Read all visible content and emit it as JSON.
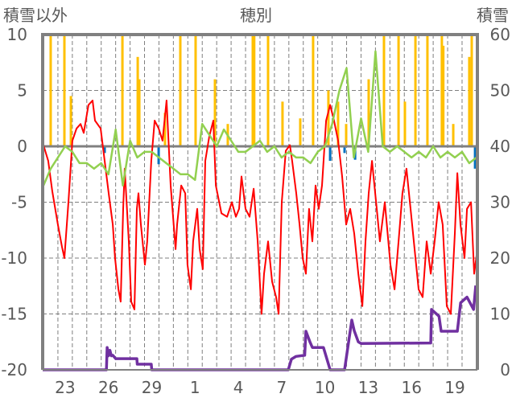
{
  "chart_data": {
    "type": "line",
    "title": "穂別",
    "ylabel_left": "積雪以外",
    "ylabel_right": "積雪",
    "ylim_left": [
      -20,
      10
    ],
    "ylim_right": [
      0,
      60
    ],
    "yticks_left": [
      "10",
      "5",
      "0",
      "-5",
      "-10",
      "-15",
      "-20"
    ],
    "yticks_right": [
      "60",
      "50",
      "40",
      "30",
      "20",
      "10",
      "0"
    ],
    "x_days": [
      "22",
      "23",
      "24",
      "25",
      "26",
      "27",
      "28",
      "29",
      "30",
      "31",
      "1",
      "2",
      "3",
      "4",
      "5",
      "6",
      "7",
      "8",
      "9",
      "10",
      "11",
      "12",
      "13",
      "14",
      "15",
      "16",
      "17",
      "18",
      "19",
      "20"
    ],
    "x_tick_labels": [
      "23",
      "26",
      "29",
      "1",
      "4",
      "7",
      "10",
      "13",
      "16",
      "19"
    ],
    "grid": true,
    "colors": {
      "red": "#FF0000",
      "green": "#92D050",
      "yellow": "#FFC000",
      "blue": "#0070C0",
      "purple": "#7030A0",
      "axis": "#808080"
    },
    "series": [
      {
        "name": "red",
        "axis": "left",
        "kind": "line",
        "points": [
          [
            0,
            0.1
          ],
          [
            0.33,
            -1.3
          ],
          [
            0.61,
            -4
          ],
          [
            1.0,
            -7
          ],
          [
            1.28,
            -9
          ],
          [
            1.45,
            -10
          ],
          [
            1.73,
            -5
          ],
          [
            2.0,
            0.5
          ],
          [
            2.29,
            1.6
          ],
          [
            2.57,
            2
          ],
          [
            2.79,
            1.2
          ],
          [
            3.12,
            3.7
          ],
          [
            3.4,
            4.1
          ],
          [
            3.57,
            2.3
          ],
          [
            3.96,
            1.6
          ],
          [
            4.24,
            -1.3
          ],
          [
            4.52,
            -4.2
          ],
          [
            4.8,
            -7
          ],
          [
            4.96,
            -10
          ],
          [
            5.19,
            -12.8
          ],
          [
            5.35,
            -13.9
          ],
          [
            5.52,
            -5.6
          ],
          [
            5.63,
            -2
          ],
          [
            5.91,
            -8.5
          ],
          [
            6.08,
            -13.9
          ],
          [
            6.3,
            -14.6
          ],
          [
            6.47,
            -5.6
          ],
          [
            6.58,
            -4.2
          ],
          [
            6.75,
            -7
          ],
          [
            7.03,
            -10.6
          ],
          [
            7.19,
            -8.5
          ],
          [
            7.47,
            -1.3
          ],
          [
            7.7,
            2.3
          ],
          [
            7.98,
            1.6
          ],
          [
            8.25,
            0.5
          ],
          [
            8.53,
            4.1
          ],
          [
            8.81,
            -3.5
          ],
          [
            9.15,
            -9.2
          ],
          [
            9.26,
            -7
          ],
          [
            9.54,
            -3.5
          ],
          [
            9.82,
            -4.2
          ],
          [
            9.98,
            -10.6
          ],
          [
            10.21,
            -12.8
          ],
          [
            10.37,
            -8.5
          ],
          [
            10.65,
            -5.6
          ],
          [
            10.82,
            -9.2
          ],
          [
            11.04,
            -11
          ],
          [
            11.21,
            -1.3
          ],
          [
            11.49,
            0.9
          ],
          [
            11.77,
            2.3
          ],
          [
            11.94,
            -3.5
          ],
          [
            12.33,
            -6
          ],
          [
            12.72,
            -6.3
          ],
          [
            13.05,
            -5
          ],
          [
            13.33,
            -6.3
          ],
          [
            13.55,
            -5.6
          ],
          [
            13.72,
            -2.7
          ],
          [
            14.0,
            -5.6
          ],
          [
            14.28,
            -6.3
          ],
          [
            14.56,
            -3.8
          ],
          [
            14.84,
            -8.5
          ],
          [
            15.11,
            -15
          ],
          [
            15.28,
            -11.4
          ],
          [
            15.56,
            -8.5
          ],
          [
            15.84,
            -12.1
          ],
          [
            16.12,
            -13.5
          ],
          [
            16.29,
            -15
          ],
          [
            16.51,
            -5
          ],
          [
            16.79,
            -0.4
          ],
          [
            17.07,
            0.1
          ],
          [
            17.23,
            -1.3
          ],
          [
            17.51,
            -4.2
          ],
          [
            17.74,
            -7
          ],
          [
            17.96,
            -10
          ],
          [
            18.18,
            -11.4
          ],
          [
            18.4,
            -5.6
          ],
          [
            18.63,
            -8.5
          ],
          [
            18.85,
            -3.5
          ],
          [
            19.07,
            -5.6
          ],
          [
            19.3,
            -3.5
          ],
          [
            19.58,
            2.3
          ],
          [
            19.86,
            3.7
          ],
          [
            20.13,
            2.3
          ],
          [
            20.41,
            0.5
          ],
          [
            20.69,
            -2.7
          ],
          [
            20.97,
            -7
          ],
          [
            21.25,
            -5.6
          ],
          [
            21.53,
            -7.8
          ],
          [
            21.81,
            -11.4
          ],
          [
            22.09,
            -14.3
          ],
          [
            22.31,
            -8.5
          ],
          [
            22.53,
            -4.2
          ],
          [
            22.76,
            -1.3
          ],
          [
            23.09,
            -5.6
          ],
          [
            23.31,
            -8.5
          ],
          [
            23.65,
            -5
          ],
          [
            24.04,
            -10.6
          ],
          [
            24.32,
            -12.8
          ],
          [
            24.6,
            -8.5
          ],
          [
            24.87,
            -4.2
          ],
          [
            25.15,
            -2
          ],
          [
            25.43,
            -5.6
          ],
          [
            25.71,
            -9.2
          ],
          [
            25.99,
            -12.8
          ],
          [
            26.27,
            -13.5
          ],
          [
            26.55,
            -8.5
          ],
          [
            26.83,
            -11.4
          ],
          [
            27.1,
            -8.5
          ],
          [
            27.38,
            -5
          ],
          [
            27.66,
            -7
          ],
          [
            27.94,
            -14.3
          ],
          [
            28.22,
            -15
          ],
          [
            28.5,
            -7.8
          ],
          [
            28.67,
            -2.4
          ],
          [
            28.89,
            -7
          ],
          [
            29.17,
            -10
          ],
          [
            29.34,
            -5.6
          ],
          [
            29.62,
            -5
          ],
          [
            29.84,
            -11.4
          ],
          [
            30.06,
            -9.2
          ]
        ]
      },
      {
        "name": "green",
        "axis": "left",
        "kind": "line",
        "start": 0,
        "step": 0.5,
        "values": [
          -3.5,
          -2,
          -1,
          0,
          -0.5,
          -1.5,
          -1.5,
          -2,
          -1.5,
          -2.5,
          1.5,
          -3.5,
          0.5,
          -1,
          -0.5,
          -0.5,
          -1,
          -1.5,
          -2,
          -2.5,
          -2.5,
          -3,
          2,
          1,
          0,
          1.5,
          0.5,
          -0.5,
          -0.5,
          0,
          0.5,
          -0.5,
          0,
          -1,
          -0.5,
          -1,
          -1,
          -1.5,
          -0.5,
          0,
          2,
          5,
          7,
          -1,
          2.5,
          -0.5,
          8.5,
          0,
          -0.5,
          0,
          -0.5,
          -1,
          -0.5,
          -1,
          0,
          -1,
          -0.5,
          -1,
          -0.5,
          -1.5,
          -1
        ]
      },
      {
        "name": "yellow",
        "axis": "left",
        "kind": "bar",
        "points": [
          [
            0.5,
            10
          ],
          [
            1.45,
            10
          ],
          [
            1.9,
            4.5
          ],
          [
            5.47,
            10
          ],
          [
            6.53,
            8
          ],
          [
            6.64,
            6
          ],
          [
            8.42,
            3
          ],
          [
            9.48,
            10
          ],
          [
            10.54,
            10
          ],
          [
            11.88,
            6
          ],
          [
            12.77,
            2
          ],
          [
            14.5,
            10
          ],
          [
            14.6,
            10
          ],
          [
            15.56,
            10
          ],
          [
            16.56,
            4
          ],
          [
            17.79,
            2.5
          ],
          [
            18.68,
            10
          ],
          [
            19.74,
            5
          ],
          [
            20.41,
            4
          ],
          [
            20.97,
            2
          ],
          [
            22.53,
            6
          ],
          [
            23.59,
            10
          ],
          [
            24.6,
            10
          ],
          [
            25.04,
            4
          ],
          [
            25.77,
            10
          ],
          [
            26.6,
            10
          ],
          [
            27.6,
            10
          ],
          [
            27.7,
            9
          ],
          [
            28.39,
            2
          ],
          [
            29.5,
            8
          ],
          [
            29.67,
            10
          ]
        ]
      },
      {
        "name": "blue",
        "axis": "left",
        "kind": "bar",
        "points": [
          [
            4.24,
            -0.6
          ],
          [
            7.98,
            -1.6
          ],
          [
            19.86,
            -1.3
          ],
          [
            20.86,
            -0.6
          ],
          [
            21.59,
            -1.2
          ],
          [
            29.9,
            -2.0
          ]
        ]
      },
      {
        "name": "purple",
        "axis": "right",
        "kind": "line",
        "points": [
          [
            -0.1,
            0
          ],
          [
            4.36,
            0
          ],
          [
            4.41,
            4
          ],
          [
            4.5,
            2.5
          ],
          [
            4.6,
            3.5
          ],
          [
            4.7,
            2.5
          ],
          [
            4.8,
            2.6
          ],
          [
            5.0,
            2
          ],
          [
            6.47,
            2
          ],
          [
            6.5,
            1
          ],
          [
            7.47,
            1
          ],
          [
            7.5,
            0
          ],
          [
            16.96,
            0
          ],
          [
            17.18,
            1.9
          ],
          [
            17.5,
            2.4
          ],
          [
            18.1,
            2.6
          ],
          [
            18.18,
            6.9
          ],
          [
            18.46,
            5
          ],
          [
            18.63,
            4
          ],
          [
            19.4,
            4
          ],
          [
            19.86,
            0
          ],
          [
            20.86,
            0
          ],
          [
            21.36,
            8.9
          ],
          [
            21.53,
            7
          ],
          [
            21.81,
            5
          ],
          [
            22.0,
            4.7
          ],
          [
            26.83,
            4.8
          ],
          [
            26.88,
            10.8
          ],
          [
            27.4,
            9.6
          ],
          [
            27.55,
            6.9
          ],
          [
            28.67,
            6.9
          ],
          [
            28.9,
            12
          ],
          [
            29.34,
            13
          ],
          [
            29.8,
            10.8
          ],
          [
            29.95,
            15.1
          ]
        ]
      }
    ]
  }
}
